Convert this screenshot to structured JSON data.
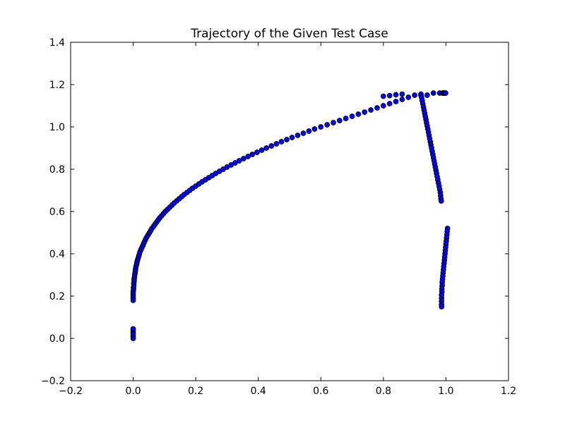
{
  "chart_data": {
    "type": "scatter",
    "title": "Trajectory of the Given Test Case",
    "xlabel": "",
    "ylabel": "",
    "xlim": [
      -0.2,
      1.2
    ],
    "ylim": [
      -0.2,
      1.4
    ],
    "xticks": [
      -0.2,
      0.0,
      0.2,
      0.4,
      0.6,
      0.8,
      1.0,
      1.2
    ],
    "yticks": [
      -0.2,
      0.0,
      0.2,
      0.4,
      0.6,
      0.8,
      1.0,
      1.2,
      1.4
    ],
    "xtick_labels": [
      "−0.2",
      "0.0",
      "0.2",
      "0.4",
      "0.6",
      "0.8",
      "1.0",
      "1.2"
    ],
    "ytick_labels": [
      "−0.2",
      "0.0",
      "0.2",
      "0.4",
      "0.6",
      "0.8",
      "1.0",
      "1.2",
      "1.4"
    ],
    "grid": false,
    "legend": false,
    "marker_face_color": "#0000ff",
    "marker_edge_color": "#000000",
    "series": [
      {
        "points": [
          [
            0.0,
            0.0
          ],
          [
            0.0,
            0.01
          ],
          [
            0.0,
            0.02
          ],
          [
            0.0,
            0.03
          ],
          [
            0.0,
            0.04
          ],
          [
            0.0,
            0.045
          ],
          [
            0.0,
            0.18
          ],
          [
            0.0,
            0.19
          ],
          [
            0.0,
            0.2
          ],
          [
            0.0,
            0.21
          ],
          [
            0.0,
            0.22
          ],
          [
            0.001,
            0.23
          ],
          [
            0.001,
            0.24
          ],
          [
            0.002,
            0.25
          ],
          [
            0.002,
            0.26
          ],
          [
            0.003,
            0.27
          ],
          [
            0.003,
            0.28
          ],
          [
            0.004,
            0.29
          ],
          [
            0.005,
            0.3
          ],
          [
            0.006,
            0.31
          ],
          [
            0.007,
            0.32
          ],
          [
            0.008,
            0.33
          ],
          [
            0.009,
            0.34
          ],
          [
            0.011,
            0.35
          ],
          [
            0.012,
            0.36
          ],
          [
            0.014,
            0.37
          ],
          [
            0.016,
            0.38
          ],
          [
            0.018,
            0.39
          ],
          [
            0.02,
            0.4
          ],
          [
            0.022,
            0.41
          ],
          [
            0.025,
            0.42
          ],
          [
            0.028,
            0.43
          ],
          [
            0.031,
            0.44
          ],
          [
            0.034,
            0.45
          ],
          [
            0.037,
            0.46
          ],
          [
            0.04,
            0.47
          ],
          [
            0.044,
            0.48
          ],
          [
            0.048,
            0.49
          ],
          [
            0.052,
            0.5
          ],
          [
            0.056,
            0.51
          ],
          [
            0.06,
            0.52
          ],
          [
            0.065,
            0.53
          ],
          [
            0.07,
            0.54
          ],
          [
            0.075,
            0.55
          ],
          [
            0.08,
            0.56
          ],
          [
            0.085,
            0.57
          ],
          [
            0.091,
            0.58
          ],
          [
            0.097,
            0.59
          ],
          [
            0.103,
            0.6
          ],
          [
            0.11,
            0.61
          ],
          [
            0.117,
            0.62
          ],
          [
            0.124,
            0.63
          ],
          [
            0.131,
            0.64
          ],
          [
            0.139,
            0.65
          ],
          [
            0.147,
            0.66
          ],
          [
            0.155,
            0.67
          ],
          [
            0.163,
            0.68
          ],
          [
            0.172,
            0.69
          ],
          [
            0.181,
            0.7
          ],
          [
            0.19,
            0.71
          ],
          [
            0.2,
            0.72
          ],
          [
            0.21,
            0.73
          ],
          [
            0.22,
            0.74
          ],
          [
            0.231,
            0.75
          ],
          [
            0.242,
            0.76
          ],
          [
            0.253,
            0.77
          ],
          [
            0.264,
            0.78
          ],
          [
            0.276,
            0.79
          ],
          [
            0.288,
            0.8
          ],
          [
            0.3,
            0.81
          ],
          [
            0.313,
            0.82
          ],
          [
            0.326,
            0.83
          ],
          [
            0.339,
            0.84
          ],
          [
            0.353,
            0.85
          ],
          [
            0.367,
            0.86
          ],
          [
            0.381,
            0.87
          ],
          [
            0.396,
            0.88
          ],
          [
            0.411,
            0.89
          ],
          [
            0.426,
            0.9
          ],
          [
            0.442,
            0.91
          ],
          [
            0.458,
            0.92
          ],
          [
            0.474,
            0.93
          ],
          [
            0.491,
            0.94
          ],
          [
            0.508,
            0.95
          ],
          [
            0.526,
            0.96
          ],
          [
            0.544,
            0.97
          ],
          [
            0.562,
            0.98
          ],
          [
            0.58,
            0.99
          ],
          [
            0.6,
            1.0
          ],
          [
            0.62,
            1.01
          ],
          [
            0.64,
            1.02
          ],
          [
            0.66,
            1.03
          ],
          [
            0.68,
            1.04
          ],
          [
            0.7,
            1.05
          ],
          [
            0.72,
            1.06
          ],
          [
            0.74,
            1.07
          ],
          [
            0.76,
            1.08
          ],
          [
            0.78,
            1.09
          ],
          [
            0.8,
            1.1
          ],
          [
            0.82,
            1.11
          ],
          [
            0.84,
            1.12
          ],
          [
            0.86,
            1.13
          ],
          [
            0.88,
            1.14
          ],
          [
            0.9,
            1.15
          ],
          [
            0.92,
            1.15
          ],
          [
            0.94,
            1.15
          ],
          [
            0.96,
            1.16
          ],
          [
            0.98,
            1.16
          ],
          [
            0.99,
            1.16
          ],
          [
            0.991,
            1.16
          ],
          [
            0.992,
            1.16
          ],
          [
            0.993,
            1.16
          ],
          [
            0.994,
            1.16
          ],
          [
            0.995,
            1.16
          ],
          [
            0.996,
            1.16
          ],
          [
            0.997,
            1.16
          ],
          [
            0.998,
            1.16
          ],
          [
            0.999,
            1.16
          ],
          [
            0.8,
            1.145
          ],
          [
            0.82,
            1.148
          ],
          [
            0.84,
            1.152
          ],
          [
            0.86,
            1.155
          ]
        ]
      },
      {
        "points": [
          [
            0.92,
            1.155
          ],
          [
            0.922,
            1.14
          ],
          [
            0.924,
            1.125
          ],
          [
            0.926,
            1.11
          ],
          [
            0.928,
            1.095
          ],
          [
            0.93,
            1.08
          ],
          [
            0.932,
            1.065
          ],
          [
            0.934,
            1.05
          ],
          [
            0.936,
            1.035
          ],
          [
            0.938,
            1.02
          ],
          [
            0.94,
            1.005
          ],
          [
            0.942,
            0.99
          ],
          [
            0.944,
            0.975
          ],
          [
            0.946,
            0.96
          ],
          [
            0.948,
            0.945
          ],
          [
            0.95,
            0.93
          ],
          [
            0.952,
            0.915
          ],
          [
            0.954,
            0.9
          ],
          [
            0.956,
            0.885
          ],
          [
            0.958,
            0.87
          ],
          [
            0.96,
            0.855
          ],
          [
            0.962,
            0.84
          ],
          [
            0.964,
            0.825
          ],
          [
            0.966,
            0.81
          ],
          [
            0.968,
            0.795
          ],
          [
            0.97,
            0.78
          ],
          [
            0.972,
            0.765
          ],
          [
            0.974,
            0.75
          ],
          [
            0.976,
            0.735
          ],
          [
            0.978,
            0.72
          ],
          [
            0.98,
            0.705
          ],
          [
            0.982,
            0.69
          ],
          [
            0.983,
            0.675
          ],
          [
            0.984,
            0.66
          ],
          [
            0.985,
            0.65
          ]
        ]
      },
      {
        "points": [
          [
            1.005,
            0.52
          ],
          [
            1.004,
            0.505
          ],
          [
            1.003,
            0.49
          ],
          [
            1.002,
            0.475
          ],
          [
            1.001,
            0.46
          ],
          [
            1.0,
            0.445
          ],
          [
            0.999,
            0.43
          ],
          [
            0.998,
            0.415
          ],
          [
            0.997,
            0.4
          ],
          [
            0.996,
            0.385
          ],
          [
            0.995,
            0.37
          ],
          [
            0.994,
            0.355
          ],
          [
            0.993,
            0.34
          ],
          [
            0.992,
            0.325
          ],
          [
            0.991,
            0.31
          ],
          [
            0.99,
            0.295
          ],
          [
            0.989,
            0.28
          ],
          [
            0.988,
            0.265
          ],
          [
            0.988,
            0.25
          ],
          [
            0.987,
            0.235
          ],
          [
            0.987,
            0.22
          ],
          [
            0.986,
            0.205
          ],
          [
            0.986,
            0.19
          ],
          [
            0.986,
            0.175
          ],
          [
            0.986,
            0.16
          ],
          [
            0.986,
            0.15
          ]
        ]
      }
    ]
  }
}
